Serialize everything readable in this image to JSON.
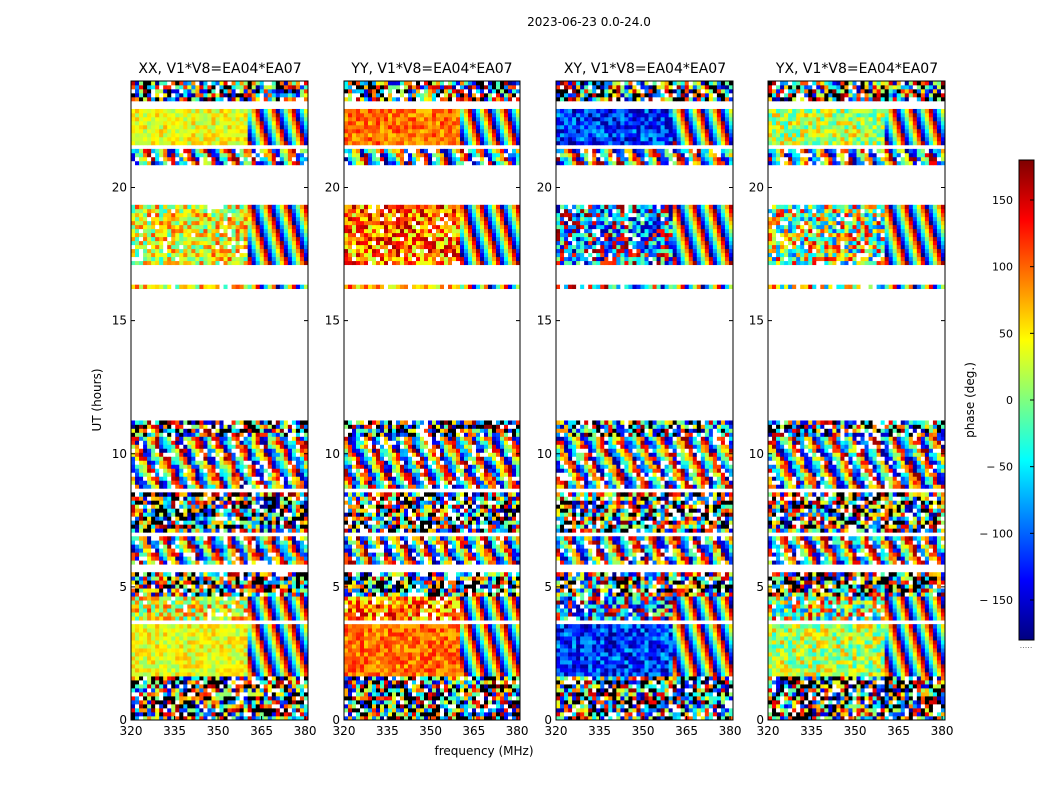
{
  "chart_data": {
    "type": "heatmap",
    "suptitle": "2023-06-23 0.0-24.0",
    "xlabel": "frequency (MHz)",
    "ylabel": "UT (hours)",
    "xlim": [
      320,
      381
    ],
    "ylim": [
      0,
      24
    ],
    "xticks": [
      320,
      335,
      350,
      365,
      380
    ],
    "xtick_labels": [
      "320",
      "335",
      "350",
      "365",
      "380"
    ],
    "yticks": [
      0,
      5,
      10,
      15,
      20
    ],
    "ytick_labels": [
      "0",
      "5",
      "10",
      "15",
      "20"
    ],
    "colorbar": {
      "label": "phase (deg.)",
      "range": [
        -180,
        180
      ],
      "ticks": [
        150,
        100,
        50,
        0,
        -50,
        -100,
        -150
      ],
      "tick_labels": [
        "150",
        "100",
        "50",
        "0",
        "− 50",
        "− 100",
        "− 150"
      ],
      "colormap": "jet"
    },
    "panels": [
      {
        "title": "XX, V1*V8=EA04*EA07",
        "mean_phase_deg": 40,
        "scatter_deg": 35
      },
      {
        "title": "YY, V1*V8=EA04*EA07",
        "mean_phase_deg": 95,
        "scatter_deg": 35
      },
      {
        "title": "XY, V1*V8=EA04*EA07",
        "mean_phase_deg": -120,
        "scatter_deg": 60
      },
      {
        "title": "YX, V1*V8=EA04*EA07",
        "mean_phase_deg": 20,
        "scatter_deg": 60
      }
    ],
    "data_blocks_ut_hours": [
      {
        "start": 0.0,
        "end": 1.6,
        "kind": "noisy"
      },
      {
        "start": 1.7,
        "end": 3.6,
        "kind": "stable"
      },
      {
        "start": 3.7,
        "end": 4.6,
        "kind": "partial"
      },
      {
        "start": 4.7,
        "end": 5.6,
        "kind": "noisy"
      },
      {
        "start": 5.9,
        "end": 6.9,
        "kind": "fringe"
      },
      {
        "start": 7.0,
        "end": 8.6,
        "kind": "noisy"
      },
      {
        "start": 8.7,
        "end": 10.6,
        "kind": "fringe"
      },
      {
        "start": 10.6,
        "end": 11.2,
        "kind": "noisy"
      },
      {
        "start": 16.2,
        "end": 16.4,
        "kind": "partial"
      },
      {
        "start": 17.1,
        "end": 19.4,
        "kind": "partial"
      },
      {
        "start": 20.8,
        "end": 21.4,
        "kind": "fringe"
      },
      {
        "start": 21.6,
        "end": 23.0,
        "kind": "stable"
      },
      {
        "start": 23.2,
        "end": 24.0,
        "kind": "noisy"
      }
    ],
    "fringe_start_mhz": 361,
    "x_colors": [
      "#ffffff",
      "#000000"
    ]
  }
}
